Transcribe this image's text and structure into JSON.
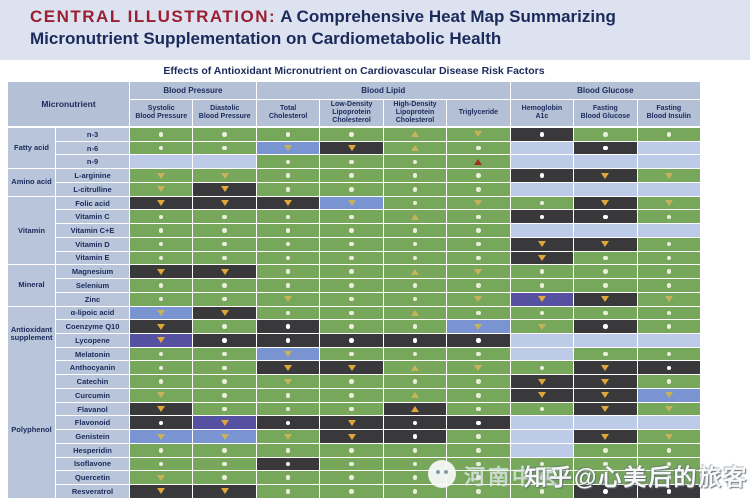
{
  "title": {
    "prefix": "CENTRAL ILLUSTRATION:",
    "line1_rest": "A Comprehensive Heat Map Summarizing",
    "line2": "Micronutrient Supplementation on Cardiometabolic Health"
  },
  "caption": "Effects of Antioxidant Micronutrient on Cardiovascular Disease Risk Factors",
  "chart_data": {
    "type": "heatmap",
    "corner_label": "Micronutrient",
    "column_groups": [
      {
        "label": "Blood Pressure",
        "columns": [
          {
            "label": "Systolic Blood Pressure",
            "lines": [
              "Systolic",
              "Blood Pressure"
            ]
          },
          {
            "label": "Diastolic Blood Pressure",
            "lines": [
              "Diastolic",
              "Blood Pressure"
            ]
          }
        ]
      },
      {
        "label": "Blood Lipid",
        "columns": [
          {
            "label": "Total Cholesterol",
            "lines": [
              "Total",
              "Cholesterol"
            ]
          },
          {
            "label": "Low-Density Lipoprotein Cholesterol",
            "lines": [
              "Low-Density",
              "Lipoprotein",
              "Cholesterol"
            ]
          },
          {
            "label": "High-Density Lipoprotein Cholesterol",
            "lines": [
              "High-Density",
              "Lipoprotein",
              "Cholesterol"
            ]
          },
          {
            "label": "Triglyceride",
            "lines": [
              "Triglyceride"
            ]
          }
        ]
      },
      {
        "label": "Blood Glucose",
        "columns": [
          {
            "label": "Hemoglobin A1c",
            "lines": [
              "Hemoglobin",
              "A1c"
            ]
          },
          {
            "label": "Fasting Blood Glucose",
            "lines": [
              "Fasting",
              "Blood Glucose"
            ]
          },
          {
            "label": "Fasting Blood Insulin",
            "lines": [
              "Fasting",
              "Blood Insulin"
            ]
          }
        ]
      }
    ],
    "cell_token_key": {
      "g.": "green cell with white dot",
      "gv": "green cell with tan down-triangle",
      "g^": "green cell with tan up-triangle",
      "g^r": "green cell with red up-triangle",
      "d.": "dark cell with white dot",
      "dv": "dark cell with gold down-triangle",
      "d^": "dark cell with gold up-triangle",
      "bv": "blue cell with tan down-triangle",
      "pv": "purple cell with gold down-triangle",
      "n": "pale blue empty cell (no data)"
    },
    "row_groups": [
      {
        "label": "Fatty acid",
        "rows": [
          {
            "name": "n-3",
            "cells": [
              "g.",
              "g.",
              "g.",
              "g.",
              "g^",
              "gv",
              "d.",
              "g.",
              "g."
            ]
          },
          {
            "name": "n-6",
            "cells": [
              "g.",
              "g.",
              "bv",
              "dv",
              "g^",
              "g.",
              "n",
              "d.",
              "n"
            ]
          },
          {
            "name": "n-9",
            "cells": [
              "n",
              "n",
              "g.",
              "g.",
              "g.",
              "g^r",
              "n",
              "n",
              "n"
            ]
          }
        ]
      },
      {
        "label": "Amino acid",
        "rows": [
          {
            "name": "L-arginine",
            "cells": [
              "gv",
              "gv",
              "g.",
              "g.",
              "g.",
              "g.",
              "d.",
              "dv",
              "gv"
            ]
          },
          {
            "name": "L-citrulline",
            "cells": [
              "gv",
              "dv",
              "g.",
              "g.",
              "g.",
              "g.",
              "n",
              "n",
              "n"
            ]
          }
        ]
      },
      {
        "label": "Vitamin",
        "rows": [
          {
            "name": "Folic acid",
            "cells": [
              "dv",
              "dv",
              "dv",
              "bv",
              "g.",
              "gv",
              "g.",
              "dv",
              "gv"
            ]
          },
          {
            "name": "Vitamin C",
            "cells": [
              "g.",
              "g.",
              "g.",
              "g.",
              "g^",
              "g.",
              "d.",
              "d.",
              "g."
            ]
          },
          {
            "name": "Vitamin C+E",
            "cells": [
              "g.",
              "g.",
              "g.",
              "g.",
              "g.",
              "g.",
              "n",
              "n",
              "n"
            ]
          },
          {
            "name": "Vitamin D",
            "cells": [
              "g.",
              "g.",
              "g.",
              "g.",
              "g.",
              "g.",
              "dv",
              "dv",
              "g."
            ]
          },
          {
            "name": "Vitamin E",
            "cells": [
              "g.",
              "g.",
              "g.",
              "g.",
              "g.",
              "g.",
              "dv",
              "g.",
              "g."
            ]
          }
        ]
      },
      {
        "label": "Mineral",
        "rows": [
          {
            "name": "Magnesium",
            "cells": [
              "dv",
              "dv",
              "g.",
              "g.",
              "g^",
              "gv",
              "g.",
              "g.",
              "g."
            ]
          },
          {
            "name": "Selenium",
            "cells": [
              "g.",
              "g.",
              "g.",
              "g.",
              "g.",
              "g.",
              "g.",
              "g.",
              "g."
            ]
          },
          {
            "name": "Zinc",
            "cells": [
              "g.",
              "g.",
              "gv",
              "g.",
              "g.",
              "gv",
              "pv",
              "dv",
              "gv"
            ]
          }
        ]
      },
      {
        "label": "Antioxidant supplement",
        "rows": [
          {
            "name": "α-lipoic acid",
            "cells": [
              "bv",
              "dv",
              "g.",
              "g.",
              "g^",
              "g.",
              "g.",
              "g.",
              "g."
            ]
          },
          {
            "name": "Coenzyme Q10",
            "cells": [
              "dv",
              "g.",
              "d.",
              "g.",
              "g.",
              "bv",
              "gv",
              "d.",
              "g."
            ]
          },
          {
            "name": "Lycopene",
            "cells": [
              "pv",
              "d.",
              "d.",
              "d.",
              "d.",
              "d.",
              "n",
              "n",
              "n"
            ]
          },
          {
            "name": "Melatonin",
            "cells": [
              "g.",
              "g.",
              "bv",
              "g.",
              "g.",
              "g.",
              "n",
              "g.",
              "g."
            ]
          }
        ]
      },
      {
        "label": "Polyphenol",
        "rows": [
          {
            "name": "Anthocyanin",
            "cells": [
              "g.",
              "g.",
              "dv",
              "dv",
              "g^",
              "gv",
              "g.",
              "dv",
              "d."
            ]
          },
          {
            "name": "Catechin",
            "cells": [
              "g.",
              "g.",
              "gv",
              "g.",
              "g.",
              "g.",
              "dv",
              "dv",
              "g."
            ]
          },
          {
            "name": "Curcumin",
            "cells": [
              "gv",
              "g.",
              "g.",
              "g.",
              "g^",
              "g.",
              "dv",
              "dv",
              "bv"
            ]
          },
          {
            "name": "Flavanol",
            "cells": [
              "dv",
              "g.",
              "g.",
              "g.",
              "d^",
              "g.",
              "g.",
              "dv",
              "gv"
            ]
          },
          {
            "name": "Flavonoid",
            "cells": [
              "d.",
              "pv",
              "d.",
              "dv",
              "d.",
              "d.",
              "n",
              "n",
              "n"
            ]
          },
          {
            "name": "Genistein",
            "cells": [
              "bv",
              "bv",
              "gv",
              "dv",
              "d.",
              "g.",
              "n",
              "dv",
              "gv"
            ]
          },
          {
            "name": "Hesperidin",
            "cells": [
              "g.",
              "g.",
              "g.",
              "g.",
              "g.",
              "g.",
              "n",
              "g.",
              "g."
            ]
          },
          {
            "name": "Isoflavone",
            "cells": [
              "g.",
              "g.",
              "d.",
              "g.",
              "g.",
              "g.",
              "g.",
              "g.",
              "g."
            ]
          },
          {
            "name": "Quercetin",
            "cells": [
              "gv",
              "g.",
              "g.",
              "g.",
              "g.",
              "g.",
              "g.",
              "g.",
              "g."
            ]
          },
          {
            "name": "Resveratrol",
            "cells": [
              "dv",
              "dv",
              "g.",
              "g.",
              "g.",
              "g.",
              "g.",
              "d.",
              "d."
            ]
          }
        ]
      }
    ]
  },
  "watermark": {
    "wechat_text": "河南中医",
    "zhihu_text": "知乎@心美后的旅客"
  },
  "colors": {
    "title_red": "#9b1f31",
    "navy": "#1b2a5a",
    "band_bg": "#dde2f0",
    "header_bg": "#b3c0d6",
    "label_bg": "#b8c5db",
    "green": "#77a75b",
    "dark": "#39383a",
    "blue": "#7a94d2",
    "purple": "#55509f",
    "nodata": "#bdcbe8",
    "dot_on_green": "#e9efdb",
    "dot_on_dark": "#ffffff",
    "tri_tan": "#c7b25c",
    "tri_gold": "#dfa63a",
    "tri_red": "#9c2f1e"
  }
}
